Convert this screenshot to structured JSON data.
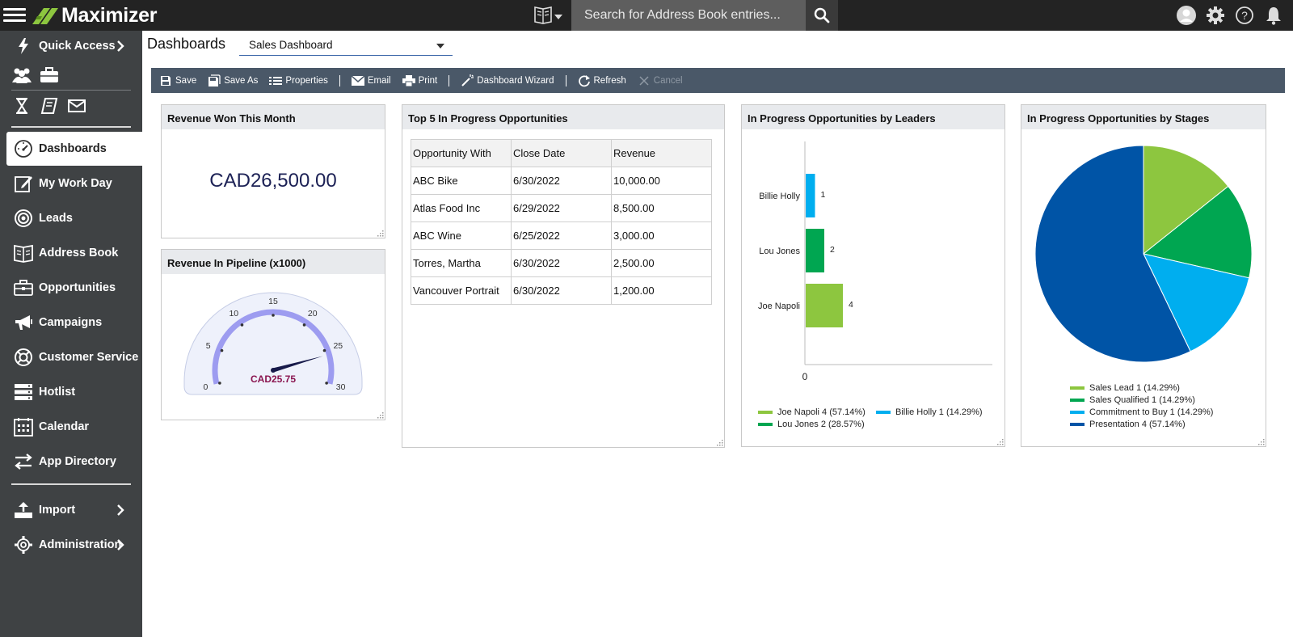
{
  "app": {
    "name": "Maximizer"
  },
  "search": {
    "placeholder": "Search for Address Book entries..."
  },
  "sidebar": {
    "quick_access": "Quick Access",
    "items": [
      {
        "label": "Dashboards",
        "icon": "gauge-icon"
      },
      {
        "label": "My Work Day",
        "icon": "edit-icon"
      },
      {
        "label": "Leads",
        "icon": "target-icon"
      },
      {
        "label": "Address Book",
        "icon": "address-book-icon"
      },
      {
        "label": "Opportunities",
        "icon": "briefcase-icon"
      },
      {
        "label": "Campaigns",
        "icon": "megaphone-icon"
      },
      {
        "label": "Customer Service",
        "icon": "lifebuoy-icon"
      },
      {
        "label": "Hotlist",
        "icon": "list-icon"
      },
      {
        "label": "Calendar",
        "icon": "calendar-icon"
      },
      {
        "label": "App Directory",
        "icon": "swap-arrows-icon"
      }
    ],
    "import": "Import",
    "administration": "Administration"
  },
  "header": {
    "title": "Dashboards",
    "selected_dashboard": "Sales Dashboard"
  },
  "toolbar": {
    "save": "Save",
    "save_as": "Save As",
    "properties": "Properties",
    "email": "Email",
    "print": "Print",
    "wizard": "Dashboard Wizard",
    "refresh": "Refresh",
    "cancel": "Cancel"
  },
  "revenue_won": {
    "title": "Revenue Won This Month",
    "amount": "CAD26,500.00"
  },
  "pipeline": {
    "title": "Revenue In Pipeline (x1000)",
    "ticks": [
      "0",
      "5",
      "10",
      "15",
      "20",
      "25",
      "30"
    ],
    "min": 0,
    "max": 30,
    "value": 25.75,
    "value_label": "CAD25.75"
  },
  "top5": {
    "title": "Top 5 In Progress Opportunities",
    "columns": [
      "Opportunity With",
      "Close Date",
      "Revenue"
    ],
    "rows": [
      [
        "ABC Bike",
        "6/30/2022",
        "10,000.00"
      ],
      [
        "Atlas Food Inc",
        "6/29/2022",
        "8,500.00"
      ],
      [
        "ABC Wine",
        "6/25/2022",
        "3,000.00"
      ],
      [
        "Torres, Martha",
        "6/30/2022",
        "2,500.00"
      ],
      [
        "Vancouver Portrait",
        "6/30/2022",
        "1,200.00"
      ]
    ]
  },
  "colors": {
    "light_green": "#8dc63f",
    "green": "#00a651",
    "light_blue": "#00aeef",
    "dark_blue": "#0054a6"
  },
  "chart_data": [
    {
      "type": "bar",
      "orientation": "horizontal",
      "title": "In Progress Opportunities by Leaders",
      "categories": [
        "Billie Holly",
        "Lou Jones",
        "Joe Napoli"
      ],
      "values": [
        1,
        2,
        4
      ],
      "colors": [
        "#00aeef",
        "#00a651",
        "#8dc63f"
      ],
      "x_tick": "0",
      "legend": [
        "Joe Napoli 4 (57.14%)",
        "Billie Holly 1 (14.29%)",
        "Lou Jones 2 (28.57%)"
      ],
      "legend_colors": [
        "#8dc63f",
        "#00aeef",
        "#00a651"
      ],
      "legend_position": "bottom"
    },
    {
      "type": "pie",
      "title": "In Progress Opportunities by Stages",
      "labels": [
        "Sales Lead",
        "Sales Qualified",
        "Commitment to Buy",
        "Presentation"
      ],
      "values": [
        1,
        1,
        1,
        4
      ],
      "colors": [
        "#8dc63f",
        "#00a651",
        "#00aeef",
        "#0054a6"
      ],
      "legend": [
        "Sales Lead 1 (14.29%)",
        "Sales Qualified 1 (14.29%)",
        "Commitment to Buy 1 (14.29%)",
        "Presentation 4 (57.14%)"
      ],
      "legend_position": "bottom"
    }
  ]
}
